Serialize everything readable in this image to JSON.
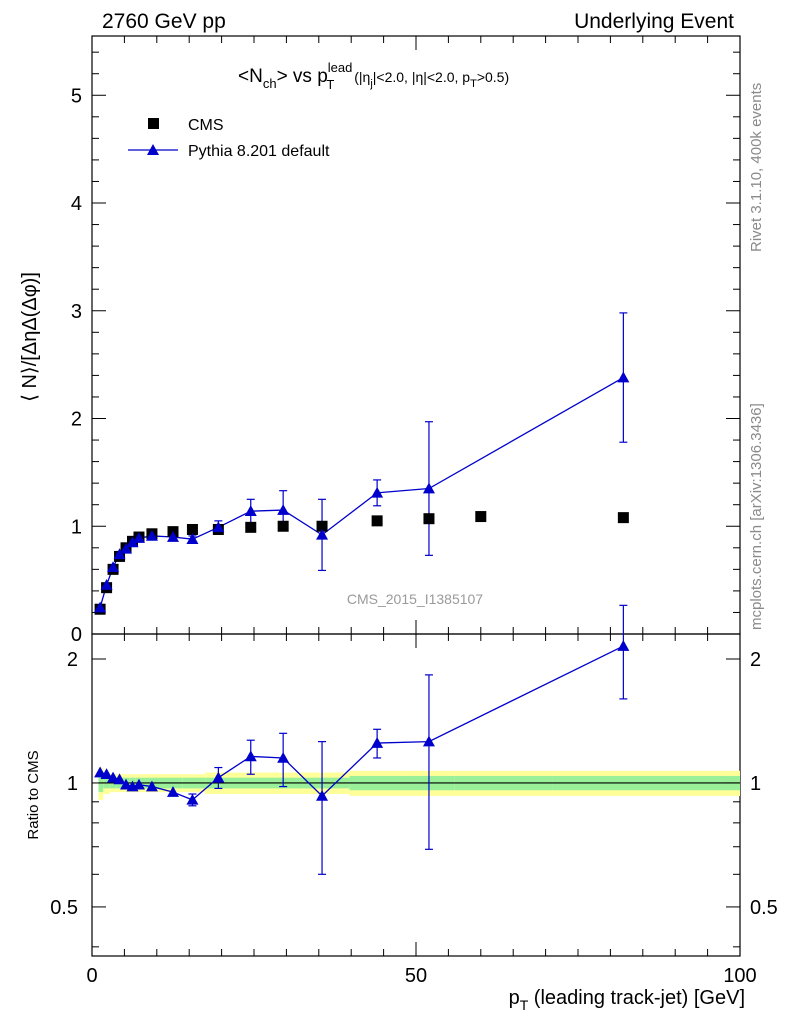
{
  "header": {
    "left": "2760 GeV pp",
    "right": "Underlying Event"
  },
  "side_labels": {
    "rivet": "Rivet 3.1.10,  400k events",
    "mcplots": "mcplots.cern.ch [arXiv:1306.3436]"
  },
  "watermark": "CMS_2015_I1385107",
  "chart_data": [
    {
      "type": "scatter",
      "panel": "main",
      "title": "<N_ch> vs p_T^lead (|η_j|<2.0, |η|<2.0, p_T>0.5)",
      "ylabel": "⟨ N⟩/[ΔηΔ(Δφ)]",
      "xlabel": "",
      "xlim": [
        0,
        100
      ],
      "ylim": [
        0,
        5.55
      ],
      "y_ticks": [
        0,
        1,
        2,
        3,
        4,
        5
      ],
      "x_ticks": [
        0,
        50,
        100
      ],
      "legend_position": "top-left",
      "series": [
        {
          "name": "CMS",
          "marker": "square",
          "color": "#000000",
          "x": [
            1.25,
            2.25,
            3.25,
            4.25,
            5.25,
            6.25,
            7.25,
            9.25,
            12.5,
            15.5,
            19.5,
            24.5,
            29.5,
            35.5,
            44.0,
            52.0,
            60.0,
            82.0
          ],
          "y": [
            0.23,
            0.43,
            0.6,
            0.72,
            0.8,
            0.86,
            0.9,
            0.93,
            0.95,
            0.97,
            0.97,
            0.99,
            1.0,
            1.0,
            1.05,
            1.07,
            1.09,
            1.08
          ],
          "band_halfwidth": [
            0.09,
            0.06,
            0.05,
            0.05,
            0.05,
            0.05,
            0.05,
            0.05,
            0.05,
            0.05,
            0.06,
            0.06,
            0.06,
            0.06,
            0.07,
            0.07,
            0.07,
            0.07
          ],
          "band_inner_halfwidth": [
            0.05,
            0.03,
            0.03,
            0.03,
            0.03,
            0.03,
            0.03,
            0.03,
            0.03,
            0.03,
            0.03,
            0.03,
            0.03,
            0.03,
            0.04,
            0.04,
            0.04,
            0.04
          ]
        },
        {
          "name": "Pythia 8.201 default",
          "marker": "triangle",
          "color": "#0000cc",
          "x": [
            1.25,
            2.25,
            3.25,
            4.25,
            5.25,
            6.25,
            7.25,
            9.25,
            12.5,
            15.5,
            19.5,
            24.5,
            29.5,
            35.5,
            44.0,
            52.0,
            82.0
          ],
          "y": [
            0.245,
            0.455,
            0.62,
            0.74,
            0.79,
            0.85,
            0.89,
            0.91,
            0.9,
            0.88,
            0.99,
            1.14,
            1.15,
            0.92,
            1.31,
            1.35,
            2.38
          ],
          "yerr": [
            0.01,
            0.01,
            0.01,
            0.01,
            0.02,
            0.02,
            0.02,
            0.02,
            0.03,
            0.03,
            0.06,
            0.11,
            0.18,
            0.33,
            0.12,
            0.62,
            0.6
          ]
        }
      ]
    },
    {
      "type": "scatter",
      "panel": "ratio",
      "ylabel": "Ratio to CMS",
      "xlabel": "p_T (leading track-jet) [GeV]",
      "xlim": [
        0,
        100
      ],
      "ylim": [
        0.38,
        2.3
      ],
      "y_ticks": [
        0.5,
        1,
        2
      ],
      "x_ticks": [
        0,
        50,
        100
      ],
      "series": [
        {
          "name": "Pythia 8.201 default",
          "x": [
            1.25,
            2.25,
            3.25,
            4.25,
            5.25,
            6.25,
            7.25,
            9.25,
            12.5,
            15.5,
            19.5,
            24.5,
            29.5,
            35.5,
            44.0,
            52.0,
            82.0
          ],
          "y": [
            1.06,
            1.05,
            1.03,
            1.02,
            0.99,
            0.98,
            0.99,
            0.98,
            0.95,
            0.91,
            1.03,
            1.16,
            1.15,
            0.93,
            1.25,
            1.26,
            2.15
          ],
          "yerr": [
            0.01,
            0.01,
            0.01,
            0.01,
            0.01,
            0.01,
            0.01,
            0.01,
            0.02,
            0.03,
            0.06,
            0.11,
            0.17,
            0.33,
            0.1,
            0.57,
            0.55
          ]
        }
      ]
    }
  ]
}
